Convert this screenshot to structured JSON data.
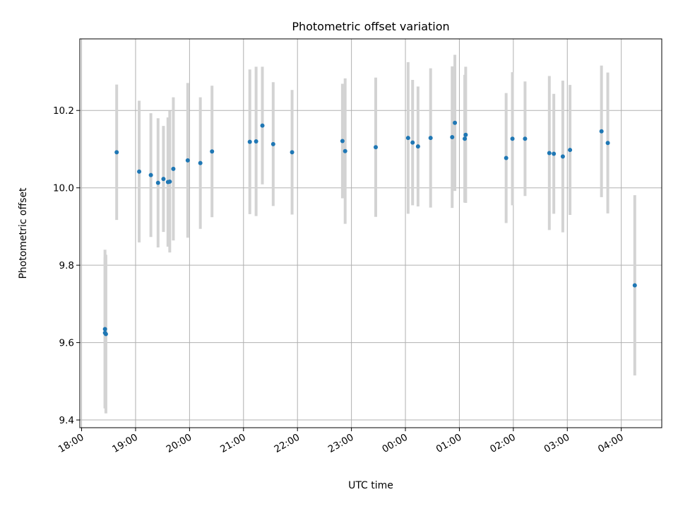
{
  "chart_data": {
    "type": "scatter",
    "title": "Photometric offset variation",
    "xlabel": "UTC time",
    "ylabel": "Photometric offset",
    "x_tick_labels": [
      "18:00",
      "19:00",
      "20:00",
      "21:00",
      "22:00",
      "23:00",
      "00:00",
      "01:00",
      "02:00",
      "03:00",
      "04:00"
    ],
    "xlim": [
      "17:58",
      "04:45"
    ],
    "ylim": [
      9.38,
      10.385
    ],
    "y_ticks": [
      "9.4",
      "9.6",
      "9.8",
      "10.0",
      "10.2"
    ],
    "grid": true,
    "colors": {
      "points": "#1f77b4",
      "errorbars": "#d3d3d3",
      "grid": "#b0b0b0"
    },
    "points": [
      {
        "t": "18:26",
        "y": 9.635,
        "err": 0.205
      },
      {
        "t": "18:26",
        "y": 9.625,
        "err": 0.195
      },
      {
        "t": "18:27",
        "y": 9.622,
        "err": 0.205
      },
      {
        "t": "18:39",
        "y": 10.092,
        "err": 0.175
      },
      {
        "t": "19:04",
        "y": 10.042,
        "err": 0.183
      },
      {
        "t": "19:17",
        "y": 10.033,
        "err": 0.16
      },
      {
        "t": "19:25",
        "y": 10.013,
        "err": 0.167
      },
      {
        "t": "19:31",
        "y": 10.023,
        "err": 0.137
      },
      {
        "t": "19:36",
        "y": 10.015,
        "err": 0.167
      },
      {
        "t": "19:38",
        "y": 10.016,
        "err": 0.183
      },
      {
        "t": "19:42",
        "y": 10.049,
        "err": 0.185
      },
      {
        "t": "19:58",
        "y": 10.071,
        "err": 0.2
      },
      {
        "t": "20:12",
        "y": 10.064,
        "err": 0.17
      },
      {
        "t": "20:25",
        "y": 10.094,
        "err": 0.17
      },
      {
        "t": "21:07",
        "y": 10.119,
        "err": 0.187
      },
      {
        "t": "21:14",
        "y": 10.12,
        "err": 0.193
      },
      {
        "t": "21:21",
        "y": 10.161,
        "err": 0.152
      },
      {
        "t": "21:33",
        "y": 10.113,
        "err": 0.16
      },
      {
        "t": "21:54",
        "y": 10.092,
        "err": 0.161
      },
      {
        "t": "22:50",
        "y": 10.121,
        "err": 0.148
      },
      {
        "t": "22:53",
        "y": 10.095,
        "err": 0.188
      },
      {
        "t": "23:27",
        "y": 10.105,
        "err": 0.18
      },
      {
        "t": "00:03",
        "y": 10.129,
        "err": 0.196
      },
      {
        "t": "00:08",
        "y": 10.117,
        "err": 0.162
      },
      {
        "t": "00:14",
        "y": 10.107,
        "err": 0.155
      },
      {
        "t": "00:28",
        "y": 10.129,
        "err": 0.18
      },
      {
        "t": "00:52",
        "y": 10.131,
        "err": 0.183
      },
      {
        "t": "00:55",
        "y": 10.168,
        "err": 0.176
      },
      {
        "t": "01:06",
        "y": 10.127,
        "err": 0.165
      },
      {
        "t": "01:07",
        "y": 10.137,
        "err": 0.176
      },
      {
        "t": "01:52",
        "y": 10.077,
        "err": 0.168
      },
      {
        "t": "01:59",
        "y": 10.127,
        "err": 0.172
      },
      {
        "t": "02:13",
        "y": 10.127,
        "err": 0.148
      },
      {
        "t": "02:40",
        "y": 10.09,
        "err": 0.199
      },
      {
        "t": "02:45",
        "y": 10.088,
        "err": 0.155
      },
      {
        "t": "02:55",
        "y": 10.081,
        "err": 0.196
      },
      {
        "t": "03:03",
        "y": 10.098,
        "err": 0.168
      },
      {
        "t": "03:38",
        "y": 10.146,
        "err": 0.17
      },
      {
        "t": "03:45",
        "y": 10.116,
        "err": 0.182
      },
      {
        "t": "04:15",
        "y": 9.748,
        "err": 0.233
      }
    ]
  }
}
